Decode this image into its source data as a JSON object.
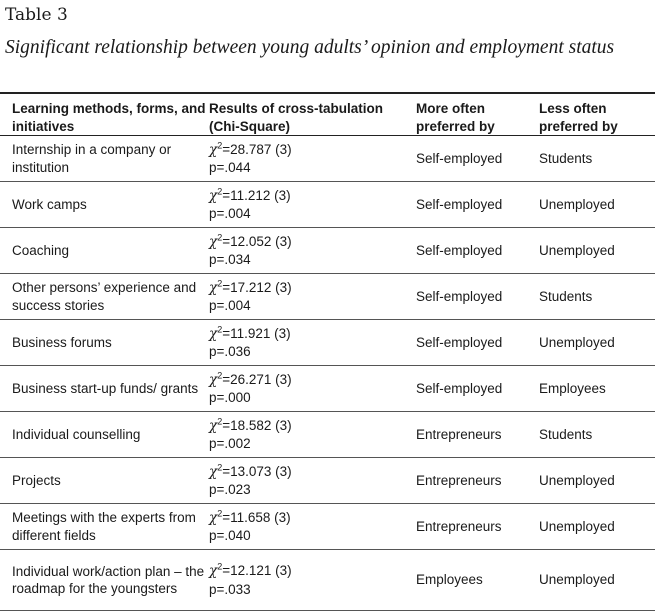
{
  "table_label": "Table 3",
  "caption": "Significant relationship between young adults’ opinion and employment status",
  "columns": [
    "Learning methods, forms, and initiatives",
    "Results of cross-tabulation (Chi-Square)",
    "More often preferred by",
    "Less often preferred by"
  ],
  "chi_symbol": "χ",
  "chi_sup": "2",
  "rows": [
    {
      "method": "Internship in a company or institution",
      "chi": "=28.787 (3)",
      "p": "p=.044",
      "more": "Self-employed",
      "less": "Students"
    },
    {
      "method": "Work camps",
      "chi": "=11.212 (3)",
      "p": "p=.004",
      "more": "Self-employed",
      "less": "Unemployed"
    },
    {
      "method": "Coaching",
      "chi": "=12.052 (3)",
      "p": "p=.034",
      "more": "Self-employed",
      "less": "Unemployed"
    },
    {
      "method": "Other persons’ experience and success stories",
      "chi": "=17.212 (3)",
      "p": "p=.004",
      "more": "Self-employed",
      "less": "Students"
    },
    {
      "method": "Business forums",
      "chi": "=11.921 (3)",
      "p": "p=.036",
      "more": "Self-employed",
      "less": "Unemployed"
    },
    {
      "method": "Business start-up funds/ grants",
      "chi": "=26.271 (3)",
      "p": "p=.000",
      "more": "Self-employed",
      "less": "Employees"
    },
    {
      "method": "Individual counselling",
      "chi": "=18.582 (3)",
      "p": "p=.002",
      "more": "Entrepreneurs",
      "less": "Students"
    },
    {
      "method": "Projects",
      "chi": "=13.073 (3)",
      "p": "p=.023",
      "more": "Entrepreneurs",
      "less": "Unemployed"
    },
    {
      "method": "Meetings with the experts from different fields",
      "chi": "=11.658 (3)",
      "p": "p=.040",
      "more": "Entrepreneurs",
      "less": "Unemployed"
    },
    {
      "method": "Individual work/action plan – the roadmap for the youngsters",
      "chi": "=12.121 (3)",
      "p": "p=.033",
      "more": "Employees",
      "less": "Unemployed"
    }
  ]
}
